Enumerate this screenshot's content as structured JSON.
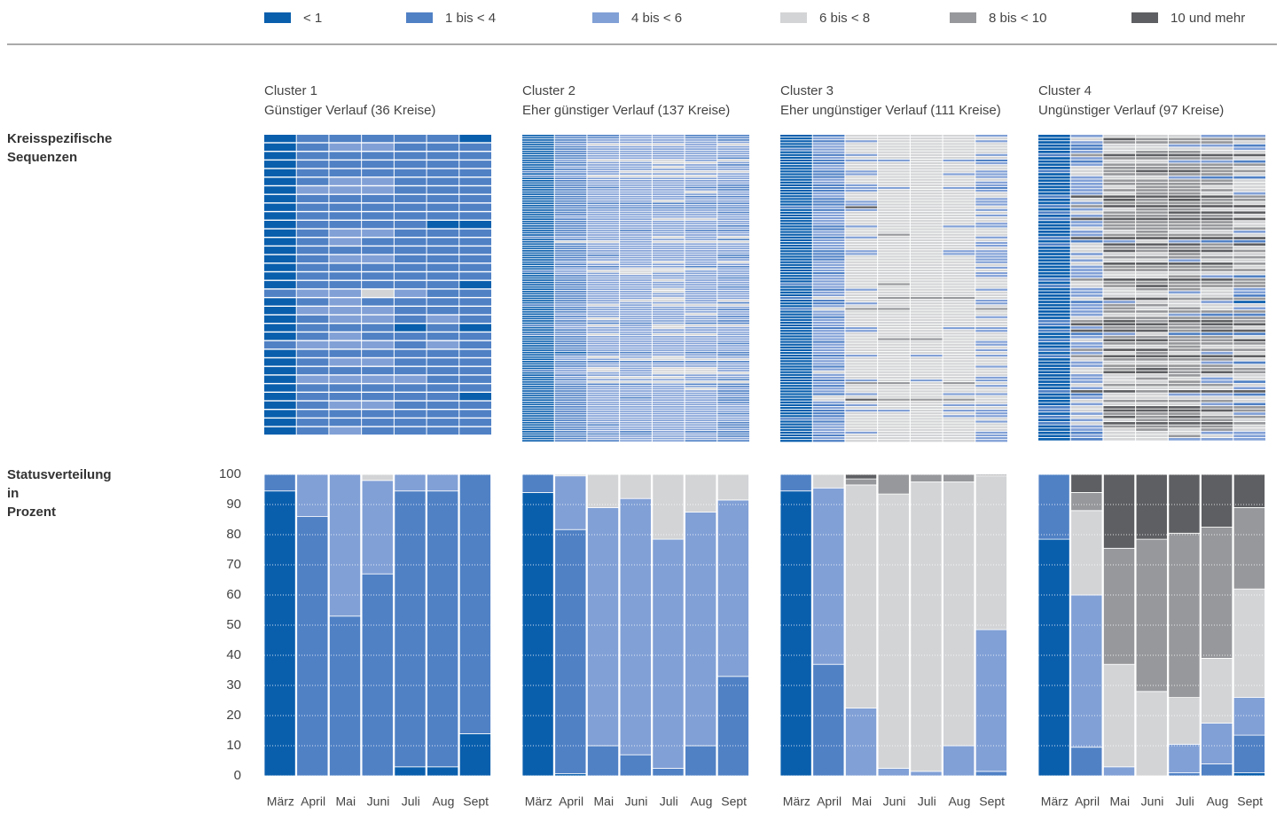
{
  "row_labels": [
    "Kreisspezifische Sequenzen",
    "Statusverteilung in Prozent"
  ],
  "chart_data": [
    {
      "type": "stacked_bar",
      "title": "Cluster 1",
      "subtitle": "Günstiger Verlauf (36 Kreise)",
      "categories": [
        "März",
        "April",
        "Mai",
        "Juni",
        "Juli",
        "Aug",
        "Sept"
      ],
      "ylim": [
        0,
        100
      ],
      "yticks": [
        0,
        10,
        20,
        30,
        40,
        50,
        60,
        70,
        80,
        90,
        100
      ],
      "series": [
        {
          "name": "< 1",
          "color": "#0a5fad",
          "values": [
            94.5,
            0,
            0,
            0,
            3,
            3,
            14
          ]
        },
        {
          "name": "1 bis < 4",
          "color": "#5081c5",
          "values": [
            5.5,
            86,
            53,
            67,
            91.5,
            91.5,
            86
          ]
        },
        {
          "name": "4 bis < 6",
          "color": "#81a0d6",
          "values": [
            0,
            14,
            47,
            31,
            5.5,
            5.5,
            0
          ]
        },
        {
          "name": "6 bis < 8",
          "color": "#d3d4d6",
          "values": [
            0,
            0,
            0,
            2,
            0,
            0,
            0
          ]
        },
        {
          "name": "8 bis < 10",
          "color": "#97989b",
          "values": [
            0,
            0,
            0,
            0,
            0,
            0,
            0
          ]
        },
        {
          "name": "10 und mehr",
          "color": "#5e5f62",
          "values": [
            0,
            0,
            0,
            0,
            0,
            0,
            0
          ]
        }
      ]
    },
    {
      "type": "stacked_bar",
      "title": "Cluster 2",
      "subtitle": "Eher günstiger Verlauf (137 Kreise)",
      "categories": [
        "März",
        "April",
        "Mai",
        "Juni",
        "Juli",
        "Aug",
        "Sept"
      ],
      "ylim": [
        0,
        100
      ],
      "series": [
        {
          "name": "< 1",
          "color": "#0a5fad",
          "values": [
            94,
            0.7,
            0,
            0,
            0,
            0,
            0
          ]
        },
        {
          "name": "1 bis < 4",
          "color": "#5081c5",
          "values": [
            6,
            81,
            10,
            7,
            2.5,
            10,
            33
          ]
        },
        {
          "name": "4 bis < 6",
          "color": "#81a0d6",
          "values": [
            0,
            17.8,
            79,
            85,
            76,
            77.5,
            58.5
          ]
        },
        {
          "name": "6 bis < 8",
          "color": "#d3d4d6",
          "values": [
            0,
            0.5,
            11,
            8,
            21.5,
            12.5,
            8.5
          ]
        },
        {
          "name": "8 bis < 10",
          "color": "#97989b",
          "values": [
            0,
            0,
            0,
            0,
            0,
            0,
            0
          ]
        },
        {
          "name": "10 und mehr",
          "color": "#5e5f62",
          "values": [
            0,
            0,
            0,
            0,
            0,
            0,
            0
          ]
        }
      ]
    },
    {
      "type": "stacked_bar",
      "title": "Cluster 3",
      "subtitle": "Eher ungünstiger Verlauf (111 Kreise)",
      "categories": [
        "März",
        "April",
        "Mai",
        "Juni",
        "Juli",
        "Aug",
        "Sept"
      ],
      "ylim": [
        0,
        100
      ],
      "series": [
        {
          "name": "< 1",
          "color": "#0a5fad",
          "values": [
            94.5,
            0,
            0,
            0,
            0,
            0,
            0
          ]
        },
        {
          "name": "1 bis < 4",
          "color": "#5081c5",
          "values": [
            5.5,
            37,
            0,
            0,
            0,
            0,
            1.5
          ]
        },
        {
          "name": "4 bis < 6",
          "color": "#81a0d6",
          "values": [
            0,
            58.5,
            22.5,
            2.5,
            1.5,
            10,
            47
          ]
        },
        {
          "name": "6 bis < 8",
          "color": "#d3d4d6",
          "values": [
            0,
            4.5,
            74,
            91,
            96,
            87.5,
            51
          ]
        },
        {
          "name": "8 bis < 10",
          "color": "#97989b",
          "values": [
            0,
            0,
            2,
            6.5,
            2.5,
            2.5,
            0.5
          ]
        },
        {
          "name": "10 und mehr",
          "color": "#5e5f62",
          "values": [
            0,
            0,
            1.5,
            0,
            0,
            0,
            0
          ]
        }
      ]
    },
    {
      "type": "stacked_bar",
      "title": "Cluster 4",
      "subtitle": "Ungünstiger Verlauf (97 Kreise)",
      "categories": [
        "März",
        "April",
        "Mai",
        "Juni",
        "Juli",
        "Aug",
        "Sept"
      ],
      "ylim": [
        0,
        100
      ],
      "series": [
        {
          "name": "< 1",
          "color": "#0a5fad",
          "values": [
            78.5,
            0,
            0,
            0,
            0,
            0,
            1
          ]
        },
        {
          "name": "1 bis < 4",
          "color": "#5081c5",
          "values": [
            21.5,
            9.5,
            0,
            0,
            1,
            4,
            12.5
          ]
        },
        {
          "name": "4 bis < 6",
          "color": "#81a0d6",
          "values": [
            0,
            50.5,
            3,
            0,
            9.5,
            13.5,
            12.5
          ]
        },
        {
          "name": "6 bis < 8",
          "color": "#d3d4d6",
          "values": [
            0,
            28,
            34,
            28,
            15.5,
            21.5,
            36
          ]
        },
        {
          "name": "8 bis < 10",
          "color": "#97989b",
          "values": [
            0,
            6,
            38.5,
            50.5,
            54.5,
            43.5,
            27
          ]
        },
        {
          "name": "10 und mehr",
          "color": "#5e5f62",
          "values": [
            0,
            6,
            24.5,
            21.5,
            19.5,
            17.5,
            11
          ]
        }
      ]
    }
  ]
}
